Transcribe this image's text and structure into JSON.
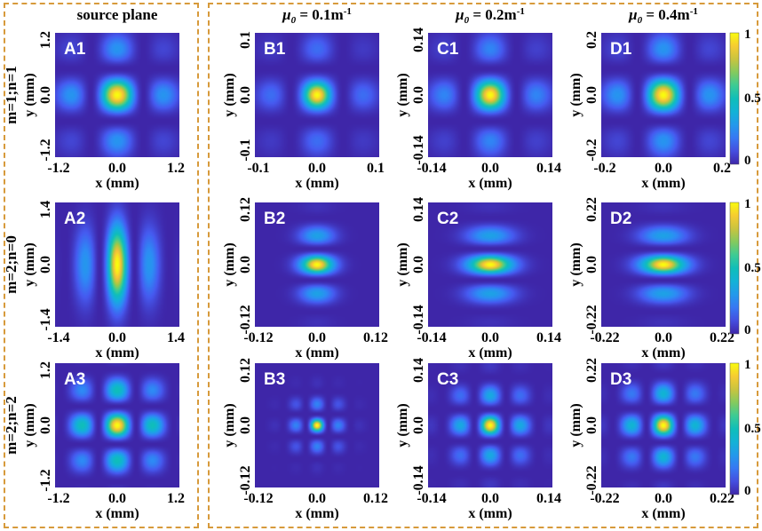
{
  "chart_data": {
    "type": "heatmap",
    "columns": [
      {
        "key": "A",
        "header_base": "source plane",
        "header_sub": "",
        "header_unit": ""
      },
      {
        "key": "B",
        "header_base": "μ",
        "header_sub": "0",
        "header_value": " = 0.1m",
        "header_exp": "-1"
      },
      {
        "key": "C",
        "header_base": "μ",
        "header_sub": "0",
        "header_value": " = 0.2m",
        "header_exp": "-1"
      },
      {
        "key": "D",
        "header_base": "μ",
        "header_sub": "0",
        "header_value": " = 0.4m",
        "header_exp": "-1"
      }
    ],
    "rows": [
      {
        "key": "1",
        "label": "m=1;n=1",
        "m": 1,
        "n": 1
      },
      {
        "key": "2",
        "label": "m=2;n=0",
        "m": 2,
        "n": 0
      },
      {
        "key": "3",
        "label": "m=2;n=2",
        "m": 2,
        "n": 2
      }
    ],
    "colorbar": {
      "ticks": [
        "1",
        "0.5",
        "0"
      ],
      "range": [
        0,
        1
      ],
      "colormap": "parula",
      "low_color": "#3e26a8",
      "high_color": "#f9fb0e"
    },
    "xlabel": "x (mm)",
    "ylabel": "y (mm)",
    "panels": [
      {
        "id": "A1",
        "xticks": [
          "-1.2",
          "0.0",
          "1.2"
        ],
        "yticks": [
          "1.2",
          "0.0",
          "-1.2"
        ],
        "pattern": "mn",
        "px": 1,
        "py": 1,
        "sx": 1.0,
        "sy": 1.0
      },
      {
        "id": "B1",
        "xticks": [
          "-0.1",
          "0.0",
          "0.1"
        ],
        "yticks": [
          "0.1",
          "0.0",
          "-0.1"
        ],
        "pattern": "mn",
        "px": 1,
        "py": 1,
        "sx": 1.0,
        "sy": 1.0,
        "focus": 1.6
      },
      {
        "id": "C1",
        "xticks": [
          "-0.14",
          "0.0",
          "0.14"
        ],
        "yticks": [
          "0.14",
          "0.0",
          "-0.14"
        ],
        "pattern": "mn",
        "px": 1,
        "py": 1,
        "sx": 1.0,
        "sy": 1.0,
        "focus": 1.2
      },
      {
        "id": "D1",
        "xticks": [
          "-0.2",
          "0.0",
          "0.2"
        ],
        "yticks": [
          "0.2",
          "0.0",
          "-0.2"
        ],
        "pattern": "mn",
        "px": 1,
        "py": 1,
        "sx": 1.0,
        "sy": 1.0,
        "focus": 1.0
      },
      {
        "id": "A2",
        "xticks": [
          "-1.4",
          "0.0",
          "1.4"
        ],
        "yticks": [
          "1.4",
          "0.0",
          "-1.4"
        ],
        "pattern": "vstripes",
        "sx": 1.0,
        "sy": 1.0
      },
      {
        "id": "B2",
        "xticks": [
          "-0.12",
          "0.0",
          "0.12"
        ],
        "yticks": [
          "0.12",
          "0.0",
          "-0.12"
        ],
        "pattern": "hstripes",
        "sx": 0.55,
        "sy": 1.0
      },
      {
        "id": "C2",
        "xticks": [
          "-0.14",
          "0.0",
          "0.14"
        ],
        "yticks": [
          "0.14",
          "0.0",
          "-0.14"
        ],
        "pattern": "hstripes",
        "sx": 0.75,
        "sy": 1.0
      },
      {
        "id": "D2",
        "xticks": [
          "-0.22",
          "0.0",
          "0.22"
        ],
        "yticks": [
          "0.22",
          "0.0",
          "-0.22"
        ],
        "pattern": "hstripes",
        "sx": 0.75,
        "sy": 1.0
      },
      {
        "id": "A3",
        "xticks": [
          "-1.2",
          "0.0",
          "1.2"
        ],
        "yticks": [
          "1.2",
          "0.0",
          "-1.2"
        ],
        "pattern": "mn",
        "px": 2,
        "py": 2,
        "sx": 1.0,
        "sy": 1.0
      },
      {
        "id": "B3",
        "xticks": [
          "-0.12",
          "0.0",
          "0.12"
        ],
        "yticks": [
          "0.12",
          "0.0",
          "-0.12"
        ],
        "pattern": "mn",
        "px": 2,
        "py": 2,
        "sx": 0.6,
        "sy": 0.6,
        "focus": 2.2
      },
      {
        "id": "C3",
        "xticks": [
          "-0.14",
          "0.0",
          "0.14"
        ],
        "yticks": [
          "0.14",
          "0.0",
          "-0.14"
        ],
        "pattern": "mn",
        "px": 2,
        "py": 2,
        "sx": 0.85,
        "sy": 0.85,
        "focus": 1.4
      },
      {
        "id": "D3",
        "xticks": [
          "-0.22",
          "0.0",
          "0.22"
        ],
        "yticks": [
          "0.22",
          "0.0",
          "-0.22"
        ],
        "pattern": "mn",
        "px": 2,
        "py": 2,
        "sx": 0.9,
        "sy": 0.9,
        "focus": 1.2
      }
    ]
  }
}
